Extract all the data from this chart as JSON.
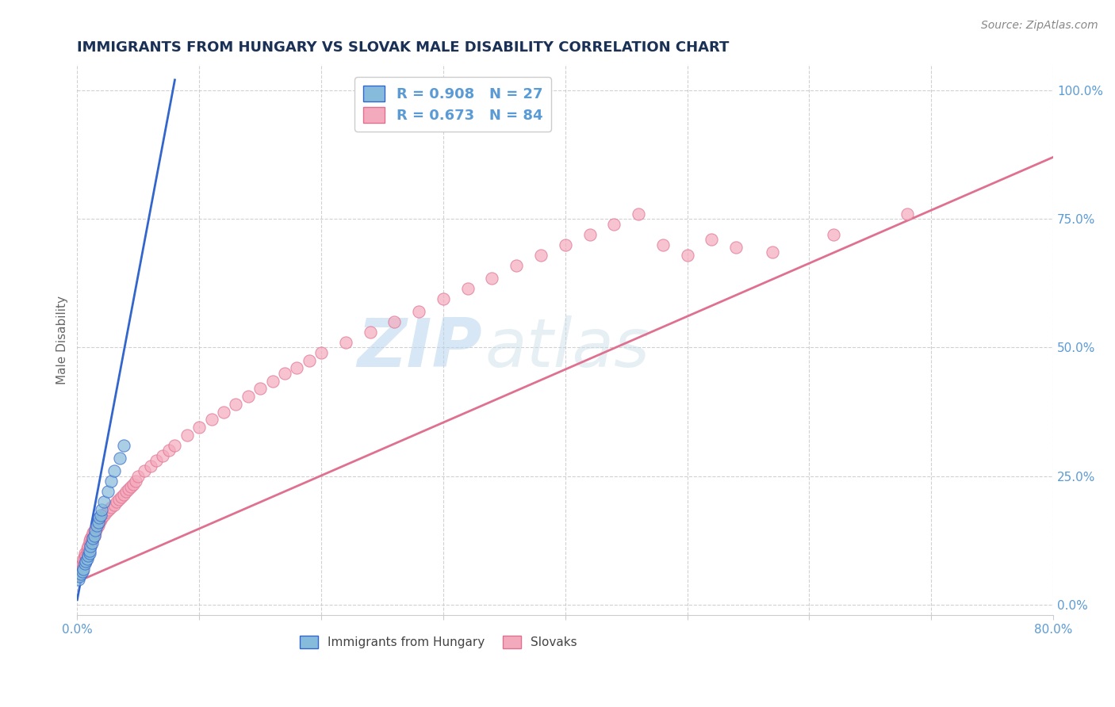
{
  "title": "IMMIGRANTS FROM HUNGARY VS SLOVAK MALE DISABILITY CORRELATION CHART",
  "source_text": "Source: ZipAtlas.com",
  "ylabel": "Male Disability",
  "xlim": [
    0.0,
    0.8
  ],
  "ylim": [
    -0.02,
    1.05
  ],
  "xticks": [
    0.0,
    0.1,
    0.2,
    0.3,
    0.4,
    0.5,
    0.6,
    0.7,
    0.8
  ],
  "xtick_labels": [
    "0.0%",
    "",
    "",
    "",
    "",
    "",
    "",
    "",
    "80.0%"
  ],
  "yticks_right": [
    0.0,
    0.25,
    0.5,
    0.75,
    1.0
  ],
  "ytick_labels_right": [
    "0.0%",
    "25.0%",
    "50.0%",
    "75.0%",
    "100.0%"
  ],
  "hungary_color": "#87BBDB",
  "slovak_color": "#F4AABD",
  "hungary_line_color": "#3366CC",
  "slovak_line_color": "#E07090",
  "legend_r_hungary": "0.908",
  "legend_n_hungary": "27",
  "legend_r_slovak": "0.673",
  "legend_n_slovak": "84",
  "watermark_zip": "ZIP",
  "watermark_atlas": "atlas",
  "background_color": "#ffffff",
  "grid_color": "#cccccc",
  "title_color": "#1a3055",
  "axis_color": "#5b9bd5",
  "hungary_x": [
    0.001,
    0.002,
    0.003,
    0.004,
    0.005,
    0.006,
    0.007,
    0.008,
    0.009,
    0.01,
    0.01,
    0.011,
    0.012,
    0.013,
    0.014,
    0.015,
    0.016,
    0.017,
    0.018,
    0.019,
    0.02,
    0.022,
    0.025,
    0.028,
    0.03,
    0.035,
    0.038
  ],
  "hungary_y": [
    0.05,
    0.055,
    0.06,
    0.065,
    0.07,
    0.08,
    0.085,
    0.09,
    0.095,
    0.1,
    0.105,
    0.115,
    0.12,
    0.13,
    0.135,
    0.145,
    0.155,
    0.16,
    0.17,
    0.175,
    0.185,
    0.2,
    0.22,
    0.24,
    0.26,
    0.285,
    0.31
  ],
  "hungary_line_x": [
    0.0,
    0.08
  ],
  "hungary_line_y": [
    0.01,
    1.02
  ],
  "slovak_x": [
    0.002,
    0.003,
    0.003,
    0.004,
    0.004,
    0.005,
    0.005,
    0.006,
    0.006,
    0.007,
    0.007,
    0.008,
    0.008,
    0.009,
    0.009,
    0.01,
    0.01,
    0.011,
    0.011,
    0.012,
    0.012,
    0.013,
    0.013,
    0.014,
    0.014,
    0.015,
    0.016,
    0.017,
    0.018,
    0.019,
    0.02,
    0.022,
    0.024,
    0.026,
    0.028,
    0.03,
    0.032,
    0.034,
    0.036,
    0.038,
    0.04,
    0.042,
    0.044,
    0.046,
    0.048,
    0.05,
    0.055,
    0.06,
    0.065,
    0.07,
    0.075,
    0.08,
    0.09,
    0.1,
    0.11,
    0.12,
    0.13,
    0.14,
    0.15,
    0.16,
    0.17,
    0.18,
    0.19,
    0.2,
    0.22,
    0.24,
    0.26,
    0.28,
    0.3,
    0.32,
    0.34,
    0.36,
    0.38,
    0.4,
    0.42,
    0.44,
    0.46,
    0.48,
    0.5,
    0.52,
    0.54,
    0.57,
    0.62,
    0.68
  ],
  "slovak_y": [
    0.06,
    0.075,
    0.065,
    0.08,
    0.07,
    0.085,
    0.09,
    0.095,
    0.1,
    0.085,
    0.095,
    0.1,
    0.11,
    0.105,
    0.115,
    0.12,
    0.125,
    0.115,
    0.13,
    0.125,
    0.135,
    0.13,
    0.14,
    0.135,
    0.145,
    0.14,
    0.15,
    0.155,
    0.16,
    0.165,
    0.17,
    0.175,
    0.18,
    0.185,
    0.19,
    0.195,
    0.2,
    0.205,
    0.21,
    0.215,
    0.22,
    0.225,
    0.23,
    0.235,
    0.24,
    0.25,
    0.26,
    0.27,
    0.28,
    0.29,
    0.3,
    0.31,
    0.33,
    0.345,
    0.36,
    0.375,
    0.39,
    0.405,
    0.42,
    0.435,
    0.45,
    0.46,
    0.475,
    0.49,
    0.51,
    0.53,
    0.55,
    0.57,
    0.595,
    0.615,
    0.635,
    0.66,
    0.68,
    0.7,
    0.72,
    0.74,
    0.76,
    0.7,
    0.68,
    0.71,
    0.695,
    0.685,
    0.72,
    0.76
  ],
  "slovak_line_x": [
    0.0,
    0.8
  ],
  "slovak_line_y": [
    0.045,
    0.87
  ]
}
